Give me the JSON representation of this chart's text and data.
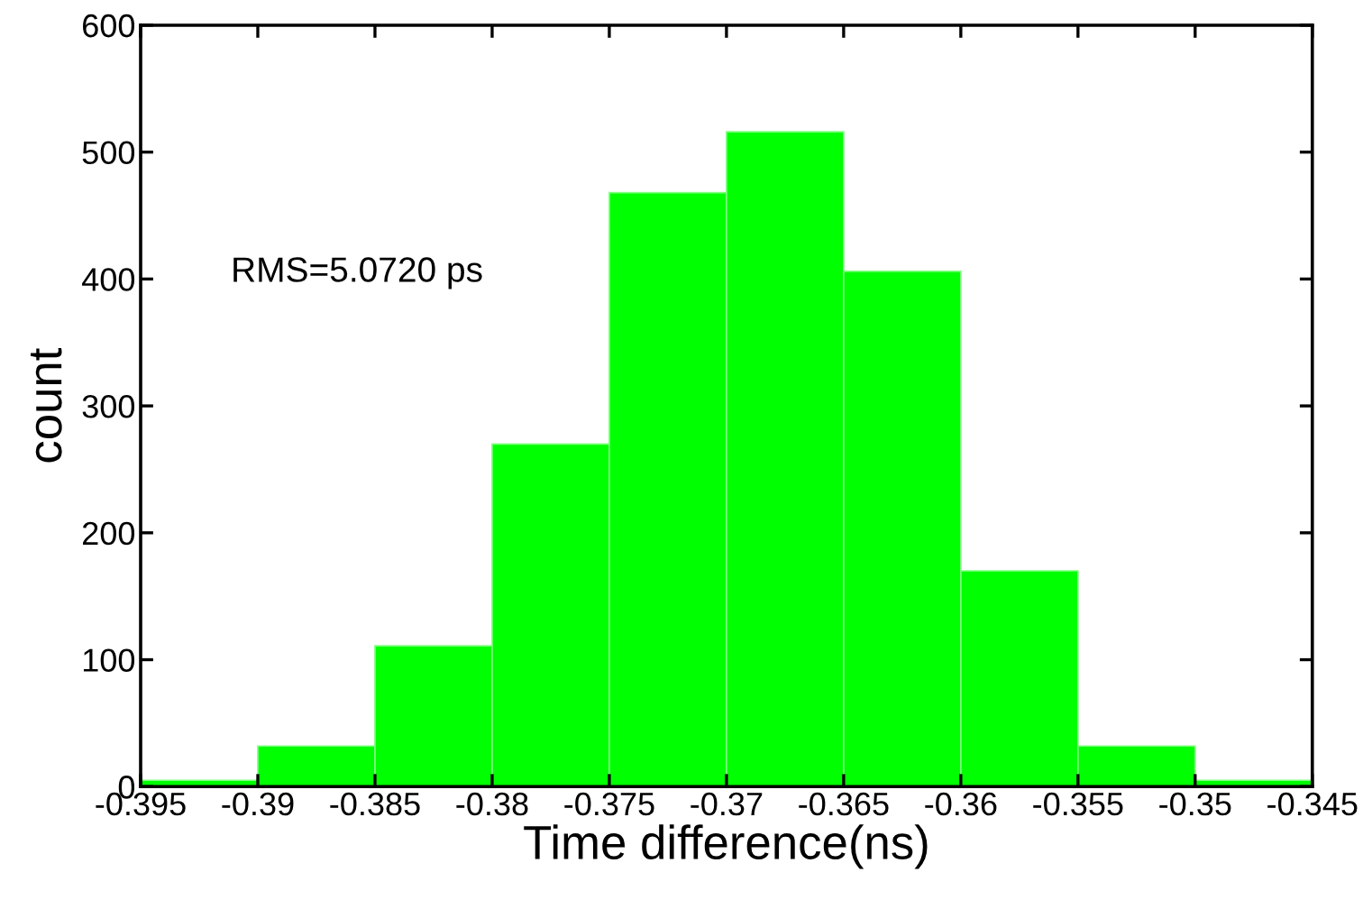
{
  "chart_data": {
    "type": "histogram",
    "xlabel": "Time difference(ns)",
    "ylabel": "count",
    "bins": [
      -0.395,
      -0.39,
      -0.385,
      -0.38,
      -0.375,
      -0.37,
      -0.365,
      -0.36,
      -0.355,
      -0.35,
      -0.345
    ],
    "values": [
      5,
      32,
      111,
      270,
      468,
      516,
      406,
      170,
      32,
      5
    ],
    "color": "#00ff00",
    "xlim": [
      -0.395,
      -0.345
    ],
    "xticks": [
      -0.395,
      -0.39,
      -0.385,
      -0.38,
      -0.375,
      -0.37,
      -0.365,
      -0.36,
      -0.355,
      -0.35,
      -0.345
    ],
    "ylim": [
      0,
      600
    ],
    "yticks": [
      0,
      100,
      200,
      300,
      400,
      500,
      600
    ],
    "annotations": [
      "RMS=5.0720 ps"
    ]
  }
}
